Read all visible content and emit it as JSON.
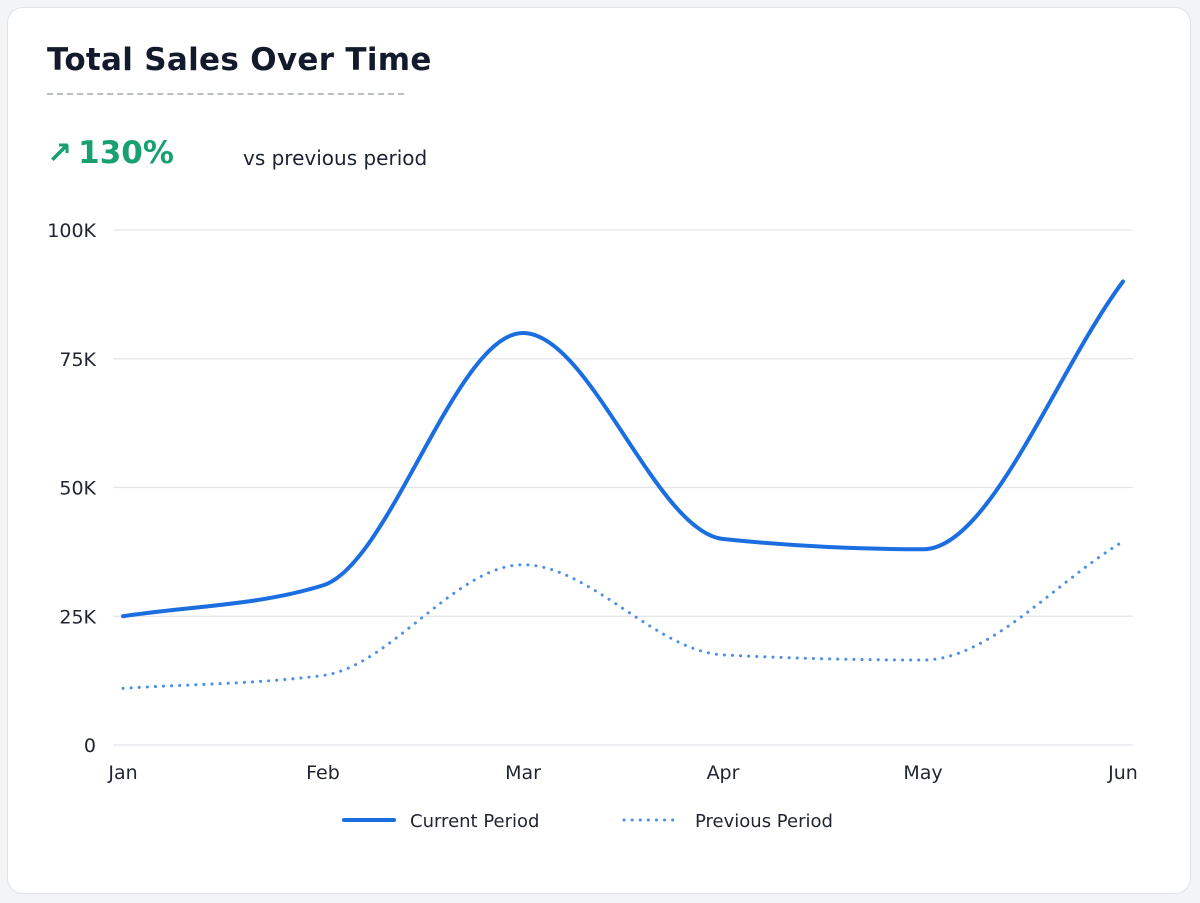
{
  "header": {
    "title": "Total Sales Over Time",
    "change_icon": "arrow-up-right-icon",
    "change_value": "130%",
    "change_note": "vs previous period"
  },
  "colors": {
    "current": "#1a6ee0",
    "previous": "#4a8fe6",
    "positive": "#18a06f",
    "grid": "#e2e5ea"
  },
  "chart_data": {
    "type": "line",
    "title": "Total Sales Over Time",
    "xlabel": "",
    "ylabel": "",
    "categories": [
      "Jan",
      "Feb",
      "Mar",
      "Apr",
      "May",
      "Jun"
    ],
    "y_ticks": [
      "0",
      "25K",
      "50K",
      "75K",
      "100K"
    ],
    "y_tick_values": [
      0,
      25000,
      50000,
      75000,
      100000
    ],
    "ylim": [
      0,
      100000
    ],
    "grid": true,
    "legend_position": "bottom-center",
    "series": [
      {
        "name": "Current Period",
        "style": "solid",
        "values": [
          25000,
          31000,
          80000,
          40000,
          38000,
          90000
        ]
      },
      {
        "name": "Previous Period",
        "style": "dotted",
        "values": [
          11000,
          13500,
          35000,
          17500,
          16500,
          39500
        ]
      }
    ]
  }
}
